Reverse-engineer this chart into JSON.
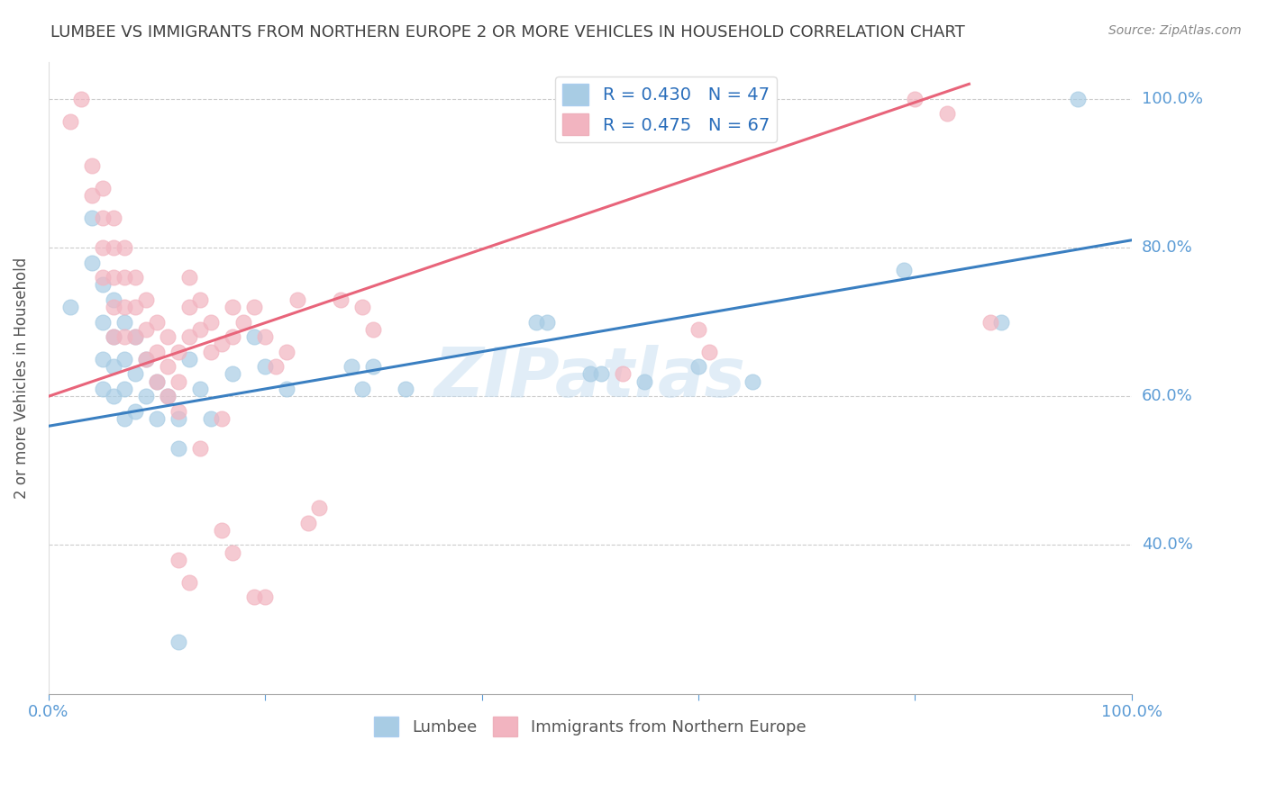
{
  "title": "LUMBEE VS IMMIGRANTS FROM NORTHERN EUROPE 2 OR MORE VEHICLES IN HOUSEHOLD CORRELATION CHART",
  "source": "Source: ZipAtlas.com",
  "ylabel": "2 or more Vehicles in Household",
  "xlim": [
    0.0,
    1.0
  ],
  "ylim": [
    0.2,
    1.05
  ],
  "ytick_positions": [
    0.4,
    0.6,
    0.8,
    1.0
  ],
  "ytick_labels": [
    "40.0%",
    "60.0%",
    "80.0%",
    "100.0%"
  ],
  "watermark": "ZIPatlas",
  "blue_color": "#a8cce4",
  "pink_color": "#f2b4c0",
  "blue_line_color": "#3a7fc1",
  "pink_line_color": "#e8647a",
  "background_color": "#ffffff",
  "title_color": "#404040",
  "axis_label_color": "#5b9bd5",
  "grid_color": "#cccccc",
  "blue_line_x0": 0.0,
  "blue_line_y0": 0.56,
  "blue_line_x1": 1.0,
  "blue_line_y1": 0.81,
  "pink_line_x0": 0.0,
  "pink_line_y0": 0.6,
  "pink_line_x1": 0.85,
  "pink_line_y1": 1.02,
  "blue_scatter": [
    [
      0.02,
      0.72
    ],
    [
      0.04,
      0.84
    ],
    [
      0.04,
      0.78
    ],
    [
      0.05,
      0.75
    ],
    [
      0.05,
      0.7
    ],
    [
      0.05,
      0.65
    ],
    [
      0.05,
      0.61
    ],
    [
      0.06,
      0.73
    ],
    [
      0.06,
      0.68
    ],
    [
      0.06,
      0.64
    ],
    [
      0.06,
      0.6
    ],
    [
      0.07,
      0.7
    ],
    [
      0.07,
      0.65
    ],
    [
      0.07,
      0.61
    ],
    [
      0.07,
      0.57
    ],
    [
      0.08,
      0.68
    ],
    [
      0.08,
      0.63
    ],
    [
      0.08,
      0.58
    ],
    [
      0.09,
      0.65
    ],
    [
      0.09,
      0.6
    ],
    [
      0.1,
      0.62
    ],
    [
      0.1,
      0.57
    ],
    [
      0.11,
      0.6
    ],
    [
      0.12,
      0.57
    ],
    [
      0.12,
      0.53
    ],
    [
      0.13,
      0.65
    ],
    [
      0.14,
      0.61
    ],
    [
      0.15,
      0.57
    ],
    [
      0.17,
      0.63
    ],
    [
      0.19,
      0.68
    ],
    [
      0.2,
      0.64
    ],
    [
      0.22,
      0.61
    ],
    [
      0.28,
      0.64
    ],
    [
      0.29,
      0.61
    ],
    [
      0.3,
      0.64
    ],
    [
      0.33,
      0.61
    ],
    [
      0.45,
      0.7
    ],
    [
      0.46,
      0.7
    ],
    [
      0.5,
      0.63
    ],
    [
      0.51,
      0.63
    ],
    [
      0.55,
      0.62
    ],
    [
      0.6,
      0.64
    ],
    [
      0.65,
      0.62
    ],
    [
      0.79,
      0.77
    ],
    [
      0.88,
      0.7
    ],
    [
      0.95,
      1.0
    ],
    [
      0.12,
      0.27
    ]
  ],
  "pink_scatter": [
    [
      0.02,
      0.97
    ],
    [
      0.03,
      1.0
    ],
    [
      0.04,
      0.91
    ],
    [
      0.04,
      0.87
    ],
    [
      0.05,
      0.88
    ],
    [
      0.05,
      0.84
    ],
    [
      0.05,
      0.8
    ],
    [
      0.05,
      0.76
    ],
    [
      0.06,
      0.84
    ],
    [
      0.06,
      0.8
    ],
    [
      0.06,
      0.76
    ],
    [
      0.06,
      0.72
    ],
    [
      0.06,
      0.68
    ],
    [
      0.07,
      0.8
    ],
    [
      0.07,
      0.76
    ],
    [
      0.07,
      0.72
    ],
    [
      0.07,
      0.68
    ],
    [
      0.08,
      0.76
    ],
    [
      0.08,
      0.72
    ],
    [
      0.08,
      0.68
    ],
    [
      0.09,
      0.73
    ],
    [
      0.09,
      0.69
    ],
    [
      0.09,
      0.65
    ],
    [
      0.1,
      0.7
    ],
    [
      0.1,
      0.66
    ],
    [
      0.1,
      0.62
    ],
    [
      0.11,
      0.68
    ],
    [
      0.11,
      0.64
    ],
    [
      0.11,
      0.6
    ],
    [
      0.12,
      0.66
    ],
    [
      0.12,
      0.62
    ],
    [
      0.12,
      0.58
    ],
    [
      0.13,
      0.76
    ],
    [
      0.13,
      0.72
    ],
    [
      0.13,
      0.68
    ],
    [
      0.14,
      0.73
    ],
    [
      0.14,
      0.69
    ],
    [
      0.15,
      0.7
    ],
    [
      0.15,
      0.66
    ],
    [
      0.16,
      0.67
    ],
    [
      0.17,
      0.72
    ],
    [
      0.17,
      0.68
    ],
    [
      0.18,
      0.7
    ],
    [
      0.19,
      0.72
    ],
    [
      0.2,
      0.68
    ],
    [
      0.21,
      0.64
    ],
    [
      0.22,
      0.66
    ],
    [
      0.23,
      0.73
    ],
    [
      0.27,
      0.73
    ],
    [
      0.29,
      0.72
    ],
    [
      0.3,
      0.69
    ],
    [
      0.12,
      0.38
    ],
    [
      0.13,
      0.35
    ],
    [
      0.16,
      0.42
    ],
    [
      0.17,
      0.39
    ],
    [
      0.19,
      0.33
    ],
    [
      0.2,
      0.33
    ],
    [
      0.24,
      0.43
    ],
    [
      0.25,
      0.45
    ],
    [
      0.14,
      0.53
    ],
    [
      0.16,
      0.57
    ],
    [
      0.8,
      1.0
    ],
    [
      0.83,
      0.98
    ],
    [
      0.87,
      0.7
    ],
    [
      0.6,
      0.69
    ],
    [
      0.61,
      0.66
    ],
    [
      0.53,
      0.63
    ]
  ]
}
